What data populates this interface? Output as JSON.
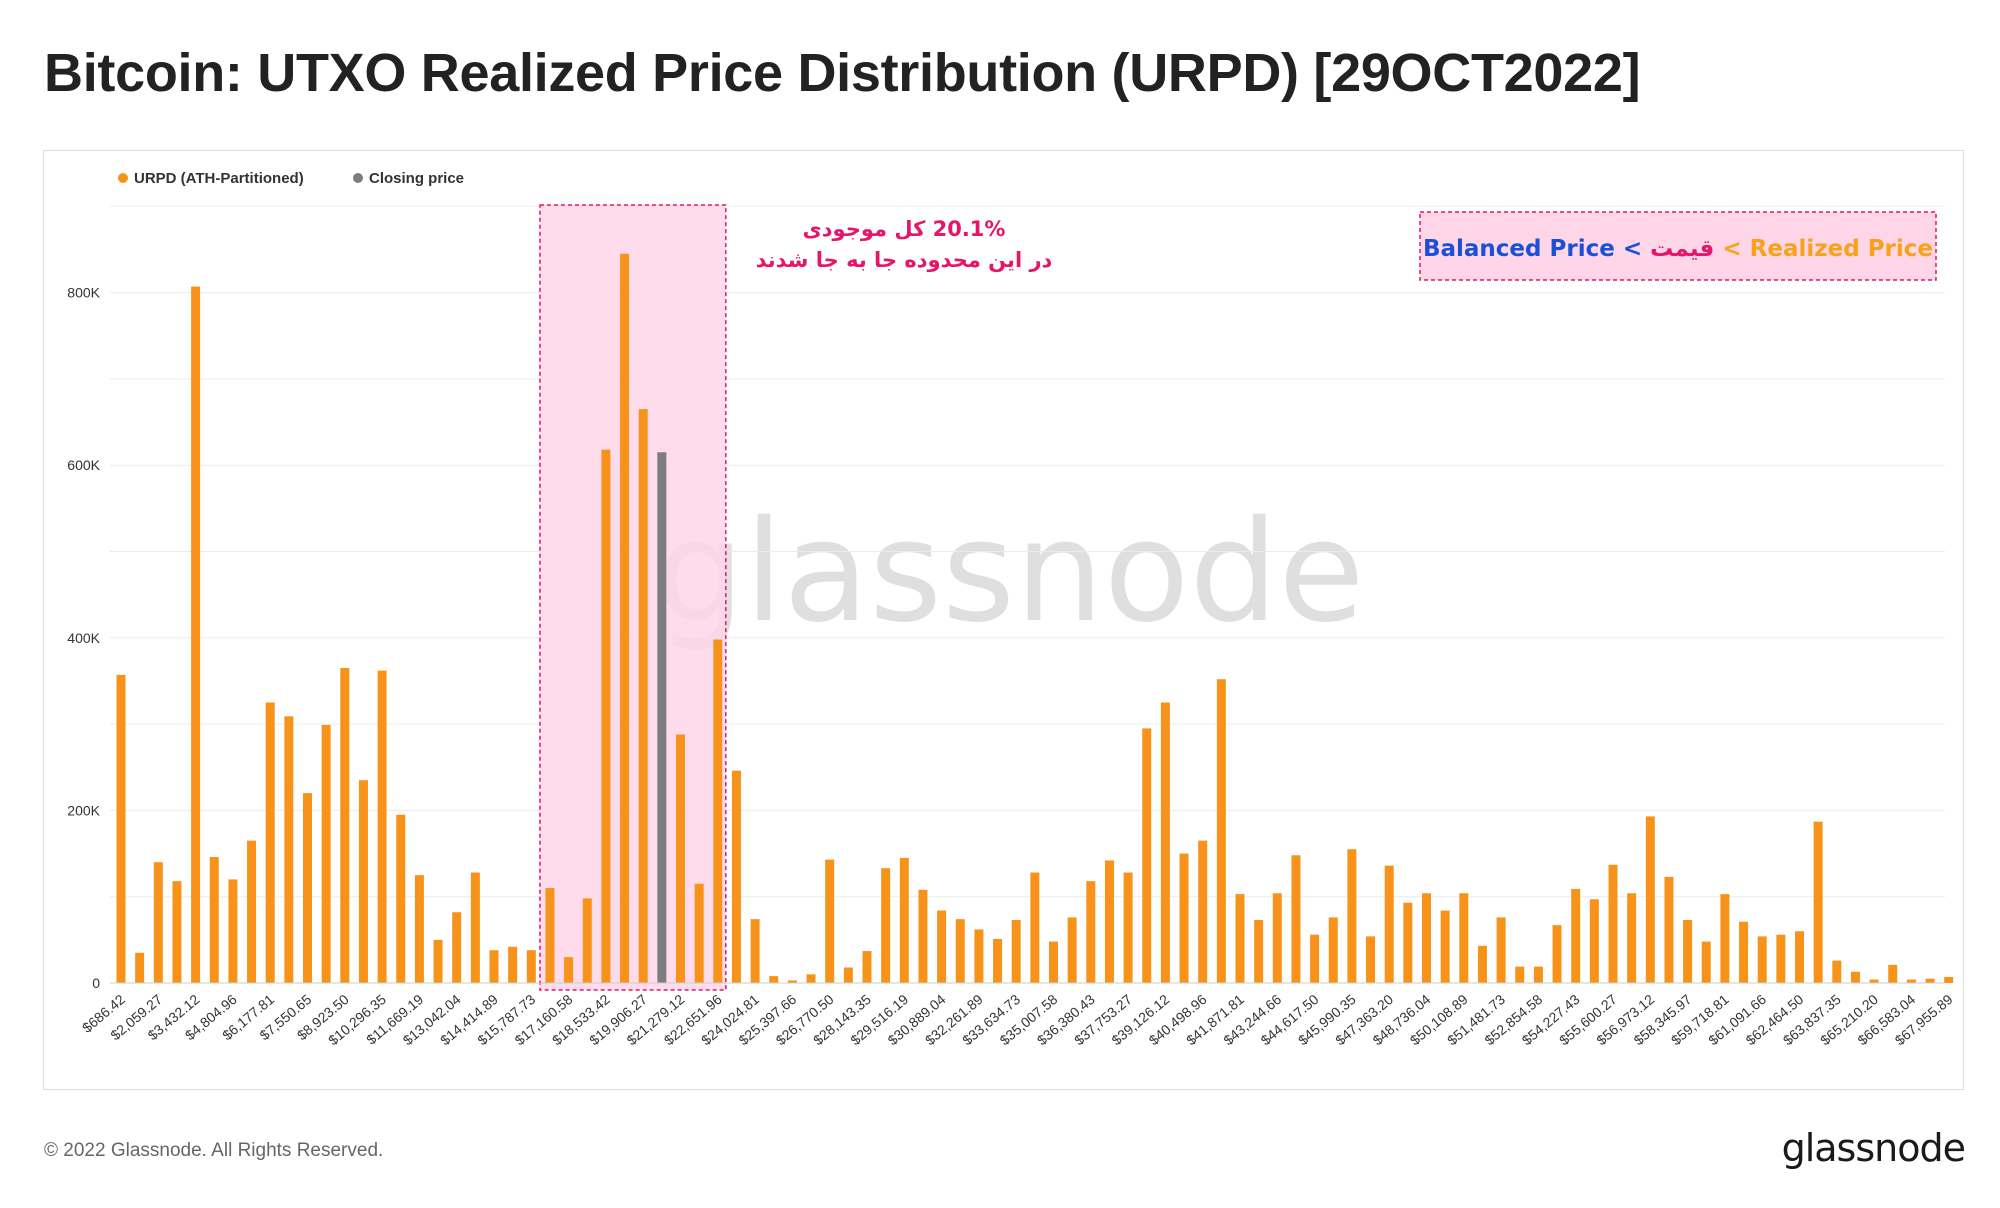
{
  "header": {
    "title": "Bitcoin: UTXO Realized Price Distribution (URPD) [29OCT2022]"
  },
  "footer": {
    "copyright": "© 2022 Glassnode. All Rights Reserved.",
    "logo": "glassnode"
  },
  "watermark": "glassnode",
  "annotation": {
    "line1": "20.1% کل موجودی",
    "line2": "در این محدوده جا به جا شدند",
    "highlight_first_bar": 23,
    "highlight_last_bar": 32
  },
  "equation": {
    "part1": "Balanced Price",
    "sep1": " < ",
    "part2": "قیمت",
    "sep2": " < ",
    "part3": "Realized Price"
  },
  "colors": {
    "bar": "#f7931a",
    "closing": "#7d7d7d",
    "highlight_fill": "#ffd6e7",
    "highlight_border": "#e6156a",
    "blue": "#1a4fd8",
    "pink": "#e6156a",
    "orange": "#f7a21a"
  },
  "chart_data": {
    "type": "bar",
    "title": "Bitcoin: UTXO Realized Price Distribution (URPD) [29OCT2022]",
    "xlabel": "",
    "ylabel": "",
    "ylim": [
      0,
      900000
    ],
    "y_ticks": [
      0,
      200000,
      400000,
      600000,
      800000
    ],
    "y_tick_labels": [
      "0",
      "200K",
      "400K",
      "600K",
      "800K"
    ],
    "grid": true,
    "legend": [
      {
        "name": "URPD (ATH-Partitioned)",
        "color": "#f7931a"
      },
      {
        "name": "Closing price",
        "color": "#7d7d7d"
      }
    ],
    "legend_position": "top-left",
    "closing_price_index": 29,
    "x_tick_labels": [
      "$686.42",
      "$2,059.27",
      "$3,432.12",
      "$4,804.96",
      "$6,177.81",
      "$7,550.65",
      "$8,923.50",
      "$10,296.35",
      "$11,669.19",
      "$13,042.04",
      "$14,414.89",
      "$15,787.73",
      "$17,160.58",
      "$18,533.42",
      "$19,906.27",
      "$21,279.12",
      "$22,651.96",
      "$24,024.81",
      "$25,397.66",
      "$26,770.50",
      "$28,143.35",
      "$29,516.19",
      "$30,889.04",
      "$32,261.89",
      "$33,634.73",
      "$35,007.58",
      "$36,380.43",
      "$37,753.27",
      "$39,126.12",
      "$40,498.96",
      "$41,871.81",
      "$43,244.66",
      "$44,617.50",
      "$45,990.35",
      "$47,363.20",
      "$48,736.04",
      "$50,108.89",
      "$51,481.73",
      "$52,854.58",
      "$54,227.43",
      "$55,600.27",
      "$56,973.12",
      "$58,345.97",
      "$59,718.81",
      "$61,091.66",
      "$62,464.50",
      "$63,837.35",
      "$65,210.20",
      "$66,583.04",
      "$67,955.89"
    ],
    "values": [
      357000,
      35000,
      140000,
      118000,
      807000,
      146000,
      120000,
      165000,
      325000,
      309000,
      220000,
      299000,
      365000,
      235000,
      362000,
      195000,
      125000,
      50000,
      82000,
      128000,
      38000,
      42000,
      38000,
      110000,
      30000,
      98000,
      618000,
      845000,
      665000,
      615000,
      288000,
      115000,
      398000,
      246000,
      74000,
      8000,
      3000,
      10000,
      143000,
      18000,
      37000,
      133000,
      145000,
      108000,
      84000,
      74000,
      62000,
      51000,
      73000,
      128000,
      48000,
      76000,
      118000,
      142000,
      128000,
      295000,
      325000,
      150000,
      165000,
      352000,
      103000,
      73000,
      104000,
      148000,
      56000,
      76000,
      155000,
      54000,
      136000,
      93000,
      104000,
      84000,
      104000,
      43000,
      76000,
      19000,
      19000,
      67000,
      109000,
      97000,
      137000,
      104000,
      193000,
      123000,
      73000,
      48000,
      103000,
      71000,
      54000,
      56000,
      60000,
      187000,
      26000,
      13000,
      4000,
      21000,
      4000,
      5000,
      7000
    ]
  }
}
